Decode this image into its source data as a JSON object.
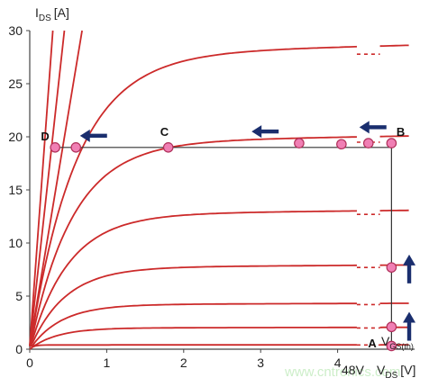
{
  "chart_data": {
    "type": "line",
    "ylabel_main": "I",
    "ylabel_sub": "DS",
    "ylabel_unit": "[A]",
    "xlabel_main": "V",
    "xlabel_sub": "DS",
    "xlabel_unit": "[V]",
    "vgs_label_main": "V",
    "vgs_label_sub": "GS(th)",
    "xlim": [
      0,
      5
    ],
    "ylim": [
      0,
      30
    ],
    "x_ticks": [
      "0",
      "1",
      "2",
      "3",
      "4"
    ],
    "x_tick_values": [
      0,
      1,
      2,
      3,
      4
    ],
    "x_special_tick": "48V",
    "y_ticks": [
      0,
      5,
      10,
      15,
      20,
      25,
      30
    ],
    "grid": false,
    "curve_color": "#cc2a2a",
    "break_color": "#ffffff",
    "point_fill": "#f07fb4",
    "point_stroke": "#b0305a",
    "arrow_color": "#1a2e6e",
    "line_color": "#333333",
    "axis_break_x": [
      4.25,
      4.55
    ],
    "saturation_curves": [
      {
        "plateau": 0.4,
        "knee": 0.05
      },
      {
        "plateau": 2.0,
        "knee": 0.35
      },
      {
        "plateau": 4.2,
        "knee": 0.4
      },
      {
        "plateau": 7.7,
        "knee": 0.45
      },
      {
        "plateau": 12.7,
        "knee": 0.5
      },
      {
        "plateau": 19.5,
        "knee": 0.55
      },
      {
        "plateau": 27.8,
        "knee": 0.6
      }
    ],
    "ohmic_lines": [
      {
        "x_end": 0.3
      },
      {
        "x_end": 0.45
      },
      {
        "x_end": 0.68
      }
    ],
    "operating_line": {
      "y": 19,
      "x_start": 0.32,
      "x_end": 4.7,
      "vertical_x": 4.7,
      "vertical_y0": 0.3,
      "vertical_y1": 19
    },
    "points": [
      {
        "x": 0.33,
        "y": 19
      },
      {
        "x": 0.6,
        "y": 19
      },
      {
        "x": 1.8,
        "y": 19
      },
      {
        "x": 3.5,
        "y": 19.4
      },
      {
        "x": 4.05,
        "y": 19.3
      },
      {
        "x": 4.4,
        "y": 19.4
      },
      {
        "x": 4.7,
        "y": 19.4
      },
      {
        "x": 4.7,
        "y": 7.7
      },
      {
        "x": 4.7,
        "y": 2.1
      },
      {
        "x": 4.7,
        "y": 0.3
      }
    ],
    "point_labels": [
      {
        "text": "D",
        "x": 0.2,
        "y": 20.1
      },
      {
        "text": "C",
        "x": 1.75,
        "y": 20.5
      },
      {
        "text": "B",
        "x": 4.82,
        "y": 20.5
      },
      {
        "text": "A",
        "x": 4.45,
        "y": 0.6
      }
    ],
    "arrows": [
      {
        "dir": "left",
        "x": 0.77,
        "y": 20.1
      },
      {
        "dir": "left",
        "x": 3.0,
        "y": 20.5
      },
      {
        "dir": "left",
        "x": 4.4,
        "y": 20.9
      },
      {
        "dir": "up",
        "x": 4.93,
        "y": 6.2
      },
      {
        "dir": "up",
        "x": 4.93,
        "y": 0.8
      }
    ],
    "watermark": "www.cntronics.com"
  }
}
